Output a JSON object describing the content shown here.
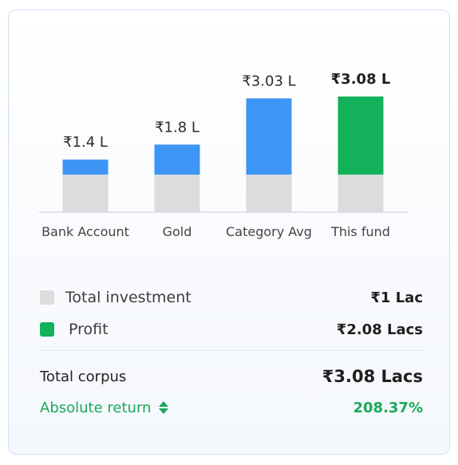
{
  "colors": {
    "investment": "#dcdcdc",
    "profit": "#3d95f5",
    "this_fund_profit": "#13b15a",
    "axis": "#d6dbe2",
    "accent_green": "#1aa95a"
  },
  "chart_data": {
    "type": "bar",
    "stacked": true,
    "categories": [
      "Bank Account",
      "Gold",
      "Category Avg",
      "This fund"
    ],
    "value_labels": [
      "₹1.4 L",
      "₹1.8 L",
      "₹3.03 L",
      "₹3.08 L"
    ],
    "totals": [
      1.4,
      1.8,
      3.03,
      3.08
    ],
    "series": [
      {
        "name": "Total investment",
        "values": [
          1,
          1,
          1,
          1
        ]
      },
      {
        "name": "Profit",
        "values": [
          0.4,
          0.8,
          2.03,
          2.08
        ]
      }
    ],
    "highlight_category": "This fund",
    "ylim": [
      0,
      3.08
    ]
  },
  "legend": [
    {
      "label": "Total investment",
      "value": "₹1 Lac",
      "color_key": "investment"
    },
    {
      "label": "Profit",
      "value": "₹2.08 Lacs",
      "color_key": "this_fund_profit"
    }
  ],
  "summary": {
    "corpus_label": "Total corpus",
    "corpus_value": "₹3.08 Lacs",
    "return_label": "Absolute return",
    "return_value": "208.37%",
    "sort_icon": "sort-updown-icon"
  }
}
